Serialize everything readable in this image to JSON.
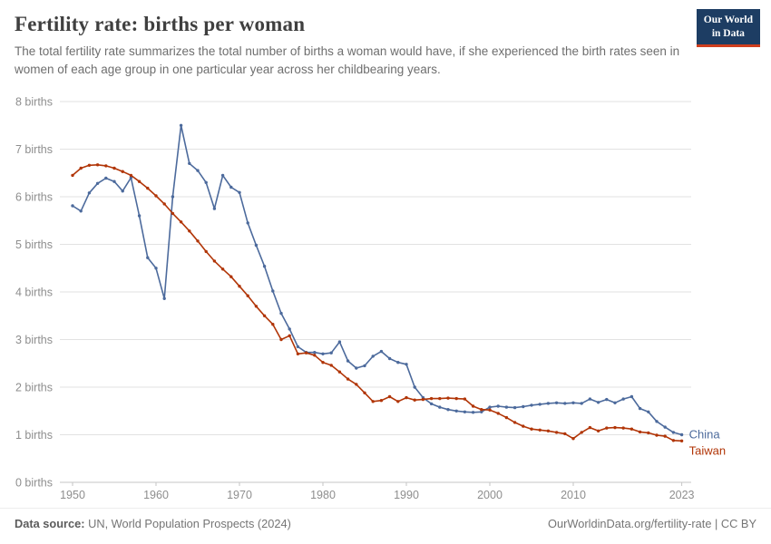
{
  "header": {
    "title": "Fertility rate: births per woman",
    "subtitle": "The total fertility rate summarizes the total number of births a woman would have, if she experienced the birth rates seen in women of each age group in one particular year across her childbearing years.",
    "logo": {
      "line1": "Our World",
      "line2": "in Data"
    }
  },
  "footer": {
    "source_label": "Data source:",
    "source_text": " UN, World Population Prospects (2024)",
    "right_text": "OurWorldinData.org/fertility-rate | CC BY"
  },
  "colors": {
    "china": "#4C6A9C",
    "taiwan": "#B13507",
    "gridline": "#e2e2e2",
    "axis_line": "#c6c6c6",
    "axis_text": "#8e8e8e",
    "logo_bg": "#1d3d63",
    "logo_accent": "#cf3e1e"
  },
  "chart_data": {
    "type": "line",
    "title": "Fertility rate: births per woman",
    "xlabel": "",
    "ylabel": "births",
    "ylim": [
      0,
      8
    ],
    "grid": true,
    "legend_position": "end-of-line",
    "y_ticks": [
      0,
      1,
      2,
      3,
      4,
      5,
      6,
      7,
      8
    ],
    "y_tick_format": "{v} births",
    "x_ticks": [
      1950,
      1960,
      1970,
      1980,
      1990,
      2000,
      2010,
      2023
    ],
    "x": [
      1950,
      1951,
      1952,
      1953,
      1954,
      1955,
      1956,
      1957,
      1958,
      1959,
      1960,
      1961,
      1962,
      1963,
      1964,
      1965,
      1966,
      1967,
      1968,
      1969,
      1970,
      1971,
      1972,
      1973,
      1974,
      1975,
      1976,
      1977,
      1978,
      1979,
      1980,
      1981,
      1982,
      1983,
      1984,
      1985,
      1986,
      1987,
      1988,
      1989,
      1990,
      1991,
      1992,
      1993,
      1994,
      1995,
      1996,
      1997,
      1998,
      1999,
      2000,
      2001,
      2002,
      2003,
      2004,
      2005,
      2006,
      2007,
      2008,
      2009,
      2010,
      2011,
      2012,
      2013,
      2014,
      2015,
      2016,
      2017,
      2018,
      2019,
      2020,
      2021,
      2022,
      2023
    ],
    "series": [
      {
        "name": "China",
        "color": "#4C6A9C",
        "values": [
          5.81,
          5.7,
          6.08,
          6.28,
          6.39,
          6.32,
          6.12,
          6.4,
          5.6,
          4.72,
          4.5,
          3.86,
          6.0,
          7.5,
          6.7,
          6.55,
          6.3,
          5.75,
          6.45,
          6.2,
          6.09,
          5.45,
          4.98,
          4.54,
          4.02,
          3.55,
          3.22,
          2.85,
          2.73,
          2.73,
          2.7,
          2.72,
          2.95,
          2.55,
          2.4,
          2.45,
          2.65,
          2.75,
          2.6,
          2.52,
          2.48,
          2.0,
          1.78,
          1.65,
          1.58,
          1.53,
          1.5,
          1.48,
          1.47,
          1.48,
          1.58,
          1.6,
          1.58,
          1.57,
          1.59,
          1.62,
          1.64,
          1.66,
          1.67,
          1.66,
          1.67,
          1.66,
          1.75,
          1.68,
          1.74,
          1.67,
          1.75,
          1.8,
          1.55,
          1.48,
          1.28,
          1.16,
          1.05,
          1.0
        ]
      },
      {
        "name": "Taiwan",
        "color": "#B13507",
        "values": [
          6.45,
          6.6,
          6.66,
          6.67,
          6.65,
          6.6,
          6.53,
          6.45,
          6.32,
          6.18,
          6.02,
          5.85,
          5.65,
          5.47,
          5.28,
          5.07,
          4.85,
          4.65,
          4.48,
          4.32,
          4.12,
          3.92,
          3.7,
          3.5,
          3.32,
          3.0,
          3.08,
          2.7,
          2.72,
          2.67,
          2.52,
          2.46,
          2.32,
          2.17,
          2.06,
          1.88,
          1.7,
          1.72,
          1.8,
          1.7,
          1.78,
          1.73,
          1.74,
          1.76,
          1.76,
          1.77,
          1.76,
          1.75,
          1.6,
          1.53,
          1.52,
          1.45,
          1.36,
          1.26,
          1.18,
          1.12,
          1.1,
          1.08,
          1.05,
          1.02,
          0.92,
          1.05,
          1.15,
          1.08,
          1.14,
          1.15,
          1.14,
          1.12,
          1.06,
          1.04,
          0.99,
          0.97,
          0.88,
          0.87
        ]
      }
    ]
  }
}
